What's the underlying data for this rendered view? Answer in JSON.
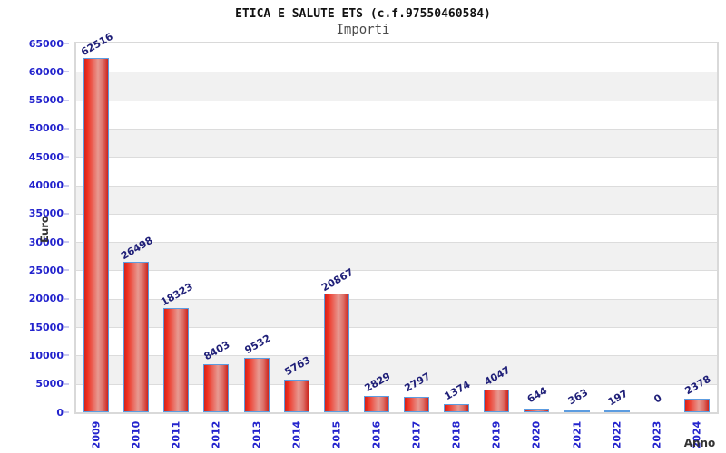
{
  "header": {
    "title": "ETICA E SALUTE ETS (c.f.97550460584)",
    "subtitle": "Importi"
  },
  "chart_data": {
    "type": "bar",
    "title": "ETICA E SALUTE ETS (c.f.97550460584)",
    "subtitle": "Importi",
    "xlabel": "Anno",
    "ylabel": "Euro",
    "categories": [
      "2009",
      "2010",
      "2011",
      "2012",
      "2013",
      "2014",
      "2015",
      "2016",
      "2017",
      "2018",
      "2019",
      "2020",
      "2021",
      "2022",
      "2023",
      "2024"
    ],
    "values": [
      62516,
      26498,
      18323,
      8403,
      9532,
      5763,
      20867,
      2829,
      2797,
      1374,
      4047,
      644,
      363,
      197,
      0,
      2378
    ],
    "value_labels": [
      "62516",
      "26498",
      "18323",
      "8403",
      "9532",
      "5763",
      "20867",
      "2829",
      "2797",
      "1374",
      "4047",
      "644",
      "363",
      "197",
      "0",
      "2378"
    ],
    "ylim": [
      0,
      65000
    ],
    "ytick_step": 5000,
    "yticks": [
      0,
      5000,
      10000,
      15000,
      20000,
      25000,
      30000,
      35000,
      40000,
      45000,
      50000,
      55000,
      60000,
      65000
    ],
    "grid": "horizontal, alternating shaded bands",
    "legend": "none",
    "colors": {
      "bar_fill_edge": "#cf231d",
      "bar_fill_center": "#e79a92",
      "bar_border": "#5c9ce0",
      "tick_label": "#2323cd",
      "value_label": "#1f1f78",
      "band_shade": "#f1f1f1",
      "gridline": "#dcdcdc",
      "plot_border": "#d9d9d9",
      "axis_title": "#333333",
      "title_text": "#111111",
      "subtitle_text": "#4a4a4a"
    }
  }
}
